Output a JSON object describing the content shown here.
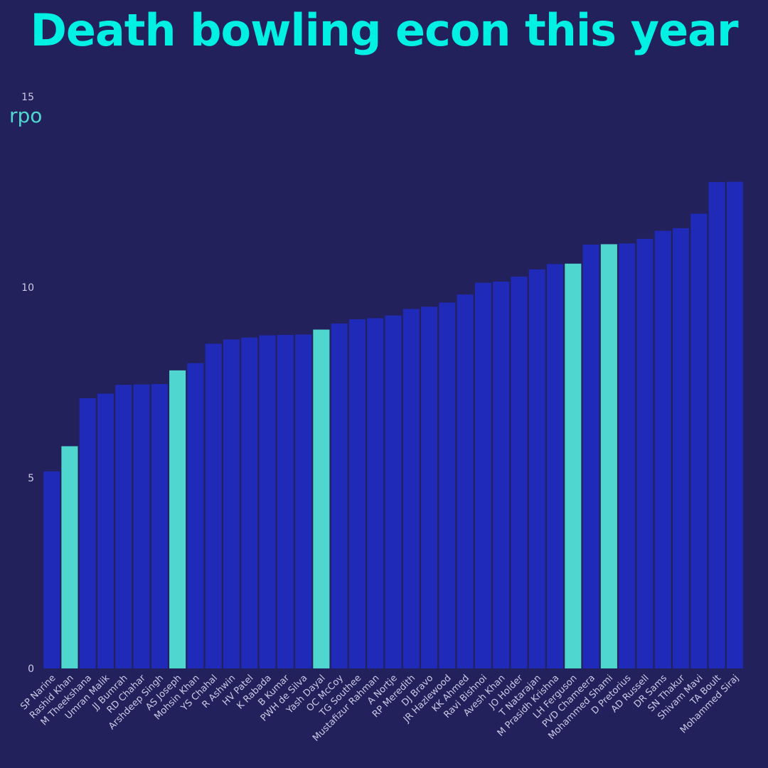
{
  "chart_data": {
    "type": "bar",
    "title": "Death bowling econ this year",
    "ylabel": "rpo",
    "xlabel": "",
    "ylim": [
      0,
      15
    ],
    "yticks": [
      0,
      5,
      10,
      15
    ],
    "grid": false,
    "colors": {
      "default": "#1f2ab8",
      "highlight": "#4fd7cf",
      "background": "#23215b",
      "title": "#00f0e4"
    },
    "categories": [
      "SP Narine",
      "Rashid Khan",
      "M Theekshana",
      "Umran Malik",
      "JJ Bumrah",
      "RD Chahar",
      "Arshdeep Singh",
      "AS Joseph",
      "Mohsin Khan",
      "YS Chahal",
      "R Ashwin",
      "HV Patel",
      "K Rabada",
      "B Kumar",
      "PWH de Silva",
      "Yash Dayal",
      "OC McCoy",
      "TG Southee",
      "Mustafizur Rahman",
      "A Nortje",
      "RP Meredith",
      "DJ Bravo",
      "JR Hazlewood",
      "KK Ahmed",
      "Ravi Bishnoi",
      "Avesh Khan",
      "JO Holder",
      "T Natarajan",
      "M Prasidh Krishna",
      "LH Ferguson",
      "PVD Chameera",
      "Mohammed Shami",
      "D Pretorius",
      "AD Russell",
      "DR Sams",
      "SN Thakur",
      "Shivam Mavi",
      "TA Boult",
      "Mohammed Siraj"
    ],
    "values": [
      5.17,
      5.83,
      7.09,
      7.21,
      7.44,
      7.45,
      7.46,
      7.82,
      8.01,
      8.52,
      8.63,
      8.68,
      8.74,
      8.75,
      8.76,
      8.89,
      9.05,
      9.16,
      9.19,
      9.26,
      9.43,
      9.49,
      9.6,
      9.81,
      10.12,
      10.15,
      10.28,
      10.47,
      10.61,
      10.62,
      11.12,
      11.13,
      11.15,
      11.27,
      11.48,
      11.55,
      11.93,
      12.76,
      12.77
    ],
    "highlighted": [
      "Rashid Khan",
      "AS Joseph",
      "Yash Dayal",
      "LH Ferguson",
      "Mohammed Shami"
    ]
  }
}
